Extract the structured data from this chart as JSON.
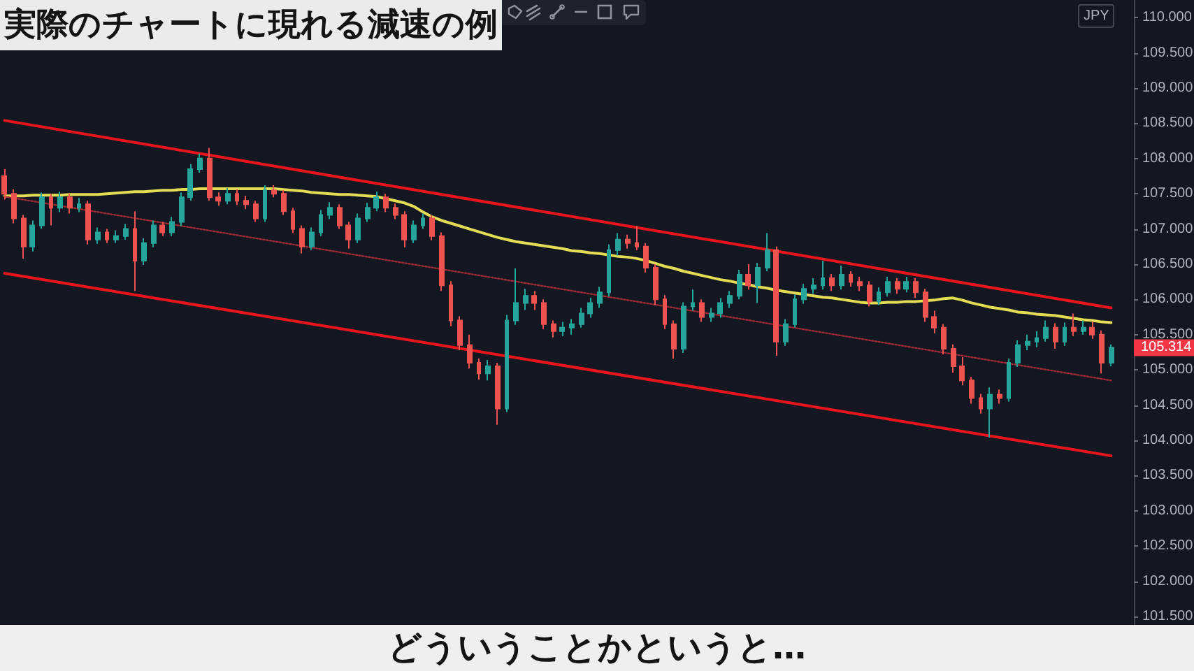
{
  "chart_data": {
    "type": "candlestick",
    "title": "実際のチャートに現れる減速の例",
    "categories": [
      null,
      null,
      null,
      null,
      null,
      null,
      null,
      null,
      null,
      null,
      null,
      null,
      null,
      null,
      null,
      null,
      null,
      null,
      null,
      null,
      null,
      null,
      null,
      null,
      null,
      null,
      null,
      null,
      null,
      null,
      null,
      null,
      null,
      null,
      null,
      null,
      null,
      null,
      null,
      null,
      null,
      null,
      null,
      null,
      null,
      null,
      null,
      null,
      null,
      null,
      null,
      null,
      null,
      null,
      null,
      null,
      null,
      null,
      null,
      null,
      null,
      null,
      null,
      null,
      null,
      null,
      null,
      null,
      null,
      null,
      null,
      null,
      null,
      null,
      null,
      null,
      null,
      null,
      null,
      null,
      null,
      null,
      null,
      null,
      null,
      null,
      null,
      null,
      null,
      null,
      null,
      null,
      null,
      null,
      null,
      null,
      null,
      null,
      null,
      null,
      null,
      null,
      null,
      null,
      null,
      null,
      null,
      null,
      null,
      null,
      null,
      null,
      null,
      null,
      null,
      null,
      null,
      null,
      null,
      null
    ],
    "ohlc": [
      [
        107.75,
        107.85,
        107.42,
        107.5
      ],
      [
        107.5,
        107.56,
        107.08,
        107.15
      ],
      [
        107.15,
        107.2,
        106.58,
        106.75
      ],
      [
        106.75,
        107.12,
        106.68,
        107.05
      ],
      [
        107.05,
        107.52,
        107.0,
        107.45
      ],
      [
        107.45,
        107.5,
        107.05,
        107.3
      ],
      [
        107.3,
        107.53,
        107.24,
        107.45
      ],
      [
        107.45,
        107.5,
        107.22,
        107.3
      ],
      [
        107.3,
        107.44,
        107.24,
        107.35
      ],
      [
        107.35,
        107.4,
        106.78,
        106.85
      ],
      [
        106.85,
        107.02,
        106.79,
        106.95
      ],
      [
        106.95,
        107.0,
        106.8,
        106.85
      ],
      [
        106.85,
        106.98,
        106.8,
        106.9
      ],
      [
        106.9,
        107.07,
        106.85,
        107.0
      ],
      [
        107.0,
        107.25,
        106.12,
        106.55
      ],
      [
        106.55,
        106.87,
        106.49,
        106.8
      ],
      [
        106.8,
        107.12,
        106.74,
        107.05
      ],
      [
        107.05,
        107.1,
        106.9,
        106.95
      ],
      [
        106.95,
        107.17,
        106.9,
        107.1
      ],
      [
        107.1,
        107.52,
        107.04,
        107.45
      ],
      [
        107.45,
        107.92,
        107.4,
        107.85
      ],
      [
        107.85,
        108.07,
        107.8,
        108.0
      ],
      [
        108.0,
        108.15,
        107.4,
        107.45
      ],
      [
        107.45,
        107.52,
        107.33,
        107.4
      ],
      [
        107.4,
        107.58,
        107.35,
        107.5
      ],
      [
        107.5,
        107.56,
        107.34,
        107.4
      ],
      [
        107.4,
        107.47,
        107.28,
        107.35
      ],
      [
        107.35,
        107.4,
        107.1,
        107.15
      ],
      [
        107.15,
        107.62,
        107.1,
        107.55
      ],
      [
        107.55,
        107.62,
        107.45,
        107.5
      ],
      [
        107.5,
        107.55,
        107.2,
        107.25
      ],
      [
        107.25,
        107.3,
        106.94,
        107.0
      ],
      [
        107.0,
        107.05,
        106.65,
        106.75
      ],
      [
        106.75,
        107.02,
        106.7,
        106.95
      ],
      [
        106.95,
        107.27,
        106.9,
        107.2
      ],
      [
        107.2,
        107.38,
        107.14,
        107.3
      ],
      [
        107.3,
        107.35,
        107.0,
        107.05
      ],
      [
        107.05,
        107.1,
        106.72,
        106.85
      ],
      [
        106.85,
        107.22,
        106.8,
        107.15
      ],
      [
        107.15,
        107.37,
        107.1,
        107.3
      ],
      [
        107.3,
        107.53,
        107.25,
        107.45
      ],
      [
        107.45,
        107.5,
        107.24,
        107.3
      ],
      [
        107.3,
        107.36,
        107.14,
        107.2
      ],
      [
        107.2,
        107.25,
        106.74,
        106.85
      ],
      [
        106.85,
        107.12,
        106.8,
        107.05
      ],
      [
        107.05,
        107.22,
        107.0,
        107.15
      ],
      [
        107.15,
        107.2,
        106.84,
        106.9
      ],
      [
        106.9,
        106.95,
        106.12,
        106.2
      ],
      [
        106.2,
        106.26,
        105.62,
        105.7
      ],
      [
        105.7,
        105.76,
        105.28,
        105.35
      ],
      [
        105.35,
        105.5,
        105.02,
        105.1
      ],
      [
        105.1,
        105.16,
        104.86,
        104.95
      ],
      [
        104.95,
        105.14,
        104.85,
        105.05
      ],
      [
        105.05,
        105.1,
        104.22,
        104.45
      ],
      [
        104.45,
        105.78,
        104.4,
        105.7
      ],
      [
        105.7,
        106.44,
        105.64,
        105.95
      ],
      [
        105.95,
        106.15,
        105.85,
        106.05
      ],
      [
        106.05,
        106.12,
        105.85,
        105.95
      ],
      [
        105.95,
        106.0,
        105.58,
        105.65
      ],
      [
        105.65,
        105.7,
        105.46,
        105.55
      ],
      [
        105.55,
        105.68,
        105.48,
        105.6
      ],
      [
        105.6,
        105.72,
        105.5,
        105.65
      ],
      [
        105.65,
        105.88,
        105.6,
        105.8
      ],
      [
        105.8,
        106.02,
        105.74,
        105.95
      ],
      [
        105.95,
        106.18,
        105.88,
        106.1
      ],
      [
        106.1,
        106.78,
        106.04,
        106.7
      ],
      [
        106.7,
        106.94,
        106.62,
        106.85
      ],
      [
        106.85,
        106.92,
        106.72,
        106.8
      ],
      [
        106.8,
        107.04,
        106.7,
        106.75
      ],
      [
        106.75,
        106.8,
        106.38,
        106.45
      ],
      [
        106.45,
        106.5,
        105.92,
        106.0
      ],
      [
        106.0,
        106.06,
        105.58,
        105.65
      ],
      [
        105.65,
        105.7,
        105.16,
        105.3
      ],
      [
        105.3,
        105.96,
        105.24,
        105.9
      ],
      [
        105.9,
        106.14,
        105.84,
        105.95
      ],
      [
        105.95,
        106.0,
        105.68,
        105.75
      ],
      [
        105.75,
        105.88,
        105.68,
        105.8
      ],
      [
        105.8,
        106.02,
        105.74,
        105.95
      ],
      [
        105.95,
        106.12,
        105.88,
        106.05
      ],
      [
        106.05,
        106.42,
        106.0,
        106.35
      ],
      [
        106.35,
        106.5,
        106.14,
        106.2
      ],
      [
        106.2,
        106.52,
        105.95,
        106.45
      ],
      [
        106.45,
        106.94,
        106.4,
        106.7
      ],
      [
        106.7,
        106.75,
        105.2,
        105.4
      ],
      [
        105.4,
        105.72,
        105.34,
        105.65
      ],
      [
        105.65,
        106.07,
        105.6,
        106.0
      ],
      [
        106.0,
        106.22,
        105.94,
        106.15
      ],
      [
        106.15,
        106.3,
        106.08,
        106.2
      ],
      [
        106.2,
        106.55,
        106.14,
        106.3
      ],
      [
        106.3,
        106.36,
        106.12,
        106.2
      ],
      [
        106.2,
        106.48,
        106.14,
        106.35
      ],
      [
        106.35,
        106.4,
        106.18,
        106.25
      ],
      [
        106.25,
        106.32,
        106.12,
        106.2
      ],
      [
        106.2,
        106.26,
        105.9,
        105.97
      ],
      [
        105.97,
        106.17,
        105.92,
        106.1
      ],
      [
        106.1,
        106.32,
        106.04,
        106.25
      ],
      [
        106.25,
        106.3,
        106.08,
        106.15
      ],
      [
        106.15,
        106.32,
        106.1,
        106.25
      ],
      [
        106.25,
        106.3,
        106.02,
        106.1
      ],
      [
        106.1,
        106.15,
        105.68,
        105.75
      ],
      [
        105.75,
        105.84,
        105.52,
        105.6
      ],
      [
        105.6,
        105.65,
        105.22,
        105.3
      ],
      [
        105.3,
        105.36,
        104.96,
        105.05
      ],
      [
        105.05,
        105.18,
        104.78,
        104.85
      ],
      [
        104.85,
        104.9,
        104.52,
        104.6
      ],
      [
        104.6,
        104.66,
        104.38,
        104.45
      ],
      [
        104.45,
        104.75,
        104.04,
        104.65
      ],
      [
        104.65,
        104.72,
        104.52,
        104.6
      ],
      [
        104.6,
        105.16,
        104.55,
        105.1
      ],
      [
        105.1,
        105.42,
        105.04,
        105.35
      ],
      [
        105.35,
        105.5,
        105.28,
        105.4
      ],
      [
        105.4,
        105.55,
        105.32,
        105.45
      ],
      [
        105.45,
        105.7,
        105.4,
        105.6
      ],
      [
        105.6,
        105.66,
        105.3,
        105.4
      ],
      [
        105.4,
        105.67,
        105.34,
        105.6
      ],
      [
        105.6,
        105.8,
        105.48,
        105.55
      ],
      [
        105.55,
        105.7,
        105.5,
        105.6
      ],
      [
        105.6,
        105.68,
        105.44,
        105.5
      ],
      [
        105.5,
        105.56,
        104.95,
        105.1
      ],
      [
        105.1,
        105.36,
        105.05,
        105.314
      ]
    ],
    "series": [
      {
        "type": "line",
        "color": "#e3dc55",
        "values": [
          107.47,
          107.47,
          107.47,
          107.48,
          107.48,
          107.48,
          107.48,
          107.49,
          107.49,
          107.49,
          107.49,
          107.5,
          107.51,
          107.52,
          107.53,
          107.53,
          107.54,
          107.55,
          107.55,
          107.56,
          107.56,
          107.57,
          107.57,
          107.57,
          107.57,
          107.57,
          107.57,
          107.57,
          107.57,
          107.57,
          107.56,
          107.55,
          107.54,
          107.52,
          107.51,
          107.5,
          107.49,
          107.49,
          107.48,
          107.47,
          107.46,
          107.43,
          107.4,
          107.37,
          107.32,
          107.24,
          107.17,
          107.12,
          107.08,
          107.04,
          107.0,
          106.96,
          106.92,
          106.88,
          106.85,
          106.82,
          106.8,
          106.78,
          106.76,
          106.74,
          106.72,
          106.69,
          106.68,
          106.66,
          106.65,
          106.63,
          106.61,
          106.6,
          106.58,
          106.55,
          106.51,
          106.47,
          106.44,
          106.4,
          106.37,
          106.34,
          106.31,
          106.28,
          106.26,
          106.23,
          106.21,
          106.18,
          106.16,
          106.13,
          106.11,
          106.09,
          106.07,
          106.05,
          106.03,
          106.02,
          106.0,
          105.98,
          105.96,
          105.95,
          105.95,
          105.96,
          105.96,
          105.97,
          105.97,
          105.98,
          105.99,
          106.01,
          106.02,
          105.99,
          105.95,
          105.92,
          105.89,
          105.87,
          105.85,
          105.82,
          105.81,
          105.79,
          105.78,
          105.77,
          105.75,
          105.73,
          105.71,
          105.7,
          105.68,
          105.67
        ]
      },
      {
        "type": "line",
        "color": "#e8161c",
        "values": [
          108.54,
          null,
          null,
          null,
          null,
          null,
          null,
          null,
          null,
          null,
          null,
          null,
          null,
          null,
          null,
          null,
          null,
          null,
          null,
          null,
          null,
          null,
          null,
          null,
          null,
          null,
          null,
          null,
          null,
          null,
          null,
          null,
          null,
          null,
          null,
          null,
          null,
          null,
          null,
          null,
          null,
          null,
          null,
          null,
          null,
          null,
          null,
          null,
          null,
          null,
          null,
          null,
          null,
          null,
          null,
          null,
          null,
          null,
          null,
          null,
          null,
          null,
          null,
          null,
          null,
          null,
          null,
          null,
          null,
          null,
          null,
          null,
          null,
          null,
          null,
          null,
          null,
          null,
          null,
          null,
          null,
          null,
          null,
          null,
          null,
          null,
          null,
          null,
          null,
          null,
          null,
          null,
          null,
          null,
          null,
          null,
          null,
          null,
          null,
          null,
          null,
          null,
          null,
          null,
          null,
          null,
          null,
          null,
          null,
          null,
          null,
          null,
          null,
          null,
          null,
          null,
          null,
          null,
          null,
          105.88
        ]
      },
      {
        "type": "line",
        "color": "#e8161c",
        "values": [
          106.37,
          null,
          null,
          null,
          null,
          null,
          null,
          null,
          null,
          null,
          null,
          null,
          null,
          null,
          null,
          null,
          null,
          null,
          null,
          null,
          null,
          null,
          null,
          null,
          null,
          null,
          null,
          null,
          null,
          null,
          null,
          null,
          null,
          null,
          null,
          null,
          null,
          null,
          null,
          null,
          null,
          null,
          null,
          null,
          null,
          null,
          null,
          null,
          null,
          null,
          null,
          null,
          null,
          null,
          null,
          null,
          null,
          null,
          null,
          null,
          null,
          null,
          null,
          null,
          null,
          null,
          null,
          null,
          null,
          null,
          null,
          null,
          null,
          null,
          null,
          null,
          null,
          null,
          null,
          null,
          null,
          null,
          null,
          null,
          null,
          null,
          null,
          null,
          null,
          null,
          null,
          null,
          null,
          null,
          null,
          null,
          null,
          null,
          null,
          null,
          null,
          null,
          null,
          null,
          null,
          null,
          null,
          null,
          null,
          null,
          null,
          null,
          null,
          null,
          null,
          null,
          null,
          null,
          null,
          103.78
        ]
      },
      {
        "type": "line",
        "color": "#9a2a33",
        "line_style": "dotted",
        "values": [
          107.46,
          null,
          null,
          null,
          null,
          null,
          null,
          null,
          null,
          null,
          null,
          null,
          null,
          null,
          null,
          null,
          null,
          null,
          null,
          null,
          null,
          null,
          null,
          null,
          null,
          null,
          null,
          null,
          null,
          null,
          null,
          null,
          null,
          null,
          null,
          null,
          null,
          null,
          null,
          null,
          null,
          null,
          null,
          null,
          null,
          null,
          null,
          null,
          null,
          null,
          null,
          null,
          null,
          null,
          null,
          null,
          null,
          null,
          null,
          null,
          null,
          null,
          null,
          null,
          null,
          null,
          null,
          null,
          null,
          null,
          null,
          null,
          null,
          null,
          null,
          null,
          null,
          null,
          null,
          null,
          null,
          null,
          null,
          null,
          null,
          null,
          null,
          null,
          null,
          null,
          null,
          null,
          null,
          null,
          null,
          null,
          null,
          null,
          null,
          null,
          null,
          null,
          null,
          null,
          null,
          null,
          null,
          null,
          null,
          null,
          null,
          null,
          null,
          null,
          null,
          null,
          null,
          null,
          null,
          104.85
        ]
      }
    ],
    "ylim": [
      101.38,
      110.25
    ],
    "yticks": [
      {
        "value": 101.5,
        "label": "101.500"
      },
      {
        "value": 102,
        "label": "102.000"
      },
      {
        "value": 102.5,
        "label": "102.500"
      },
      {
        "value": 103,
        "label": "103.000"
      },
      {
        "value": 103.5,
        "label": "103.500"
      },
      {
        "value": 104,
        "label": "104.000"
      },
      {
        "value": 104.5,
        "label": "104.500"
      },
      {
        "value": 105,
        "label": "105.000"
      },
      {
        "value": 105.5,
        "label": "105.500"
      },
      {
        "value": 106,
        "label": "106.000"
      },
      {
        "value": 106.5,
        "label": "106.500"
      },
      {
        "value": 107,
        "label": "107.000"
      },
      {
        "value": 107.5,
        "label": "107.500"
      },
      {
        "value": 108,
        "label": "108.000"
      },
      {
        "value": 108.5,
        "label": "108.500"
      },
      {
        "value": 109,
        "label": "109.000"
      },
      {
        "value": 109.5,
        "label": "109.500"
      },
      {
        "value": 110,
        "label": "110.000"
      }
    ],
    "tick_labels": "y",
    "line_style": "solid",
    "annotations": [
      "どういうことかというと…",
      "JPY",
      "105.314"
    ]
  }
}
